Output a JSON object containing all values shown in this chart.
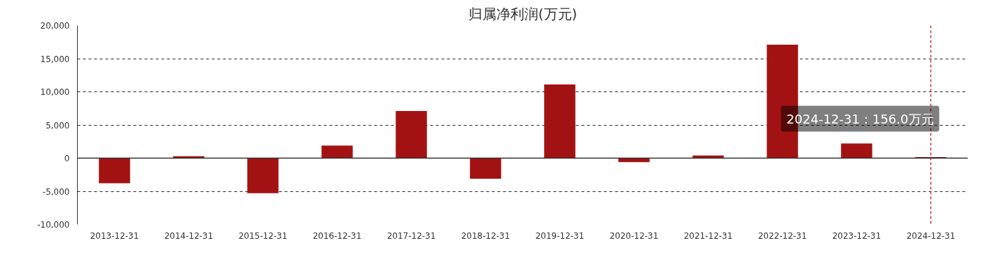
{
  "chart_data": {
    "type": "bar",
    "title": "归属净利润(万元)",
    "categories": [
      "2013-12-31",
      "2014-12-31",
      "2015-12-31",
      "2016-12-31",
      "2017-12-31",
      "2018-12-31",
      "2019-12-31",
      "2020-12-31",
      "2021-12-31",
      "2022-12-31",
      "2023-12-31",
      "2024-12-31"
    ],
    "values": [
      -3800,
      300,
      -5300,
      1900,
      7100,
      -3100,
      11100,
      -600,
      400,
      17100,
      2200,
      156
    ],
    "color": "#a31212",
    "ylim": [
      -10000,
      20000
    ],
    "yticks": [
      {
        "value": -10000,
        "label": "-10,000"
      },
      {
        "value": -5000,
        "label": "-5,000"
      },
      {
        "value": 0,
        "label": "0"
      },
      {
        "value": 5000,
        "label": "5,000"
      },
      {
        "value": 10000,
        "label": "10,000"
      },
      {
        "value": 15000,
        "label": "15,000"
      },
      {
        "value": 20000,
        "label": "20,000"
      }
    ],
    "grid": "y",
    "ref_lines": [
      {
        "axis": "x",
        "value": "2024-12-31",
        "color": "#a31212",
        "line_style": "dashed"
      }
    ],
    "annotations": [
      {
        "text": "2024-12-31：156.0万元",
        "x": "2024-12-31",
        "y": 156
      }
    ]
  }
}
